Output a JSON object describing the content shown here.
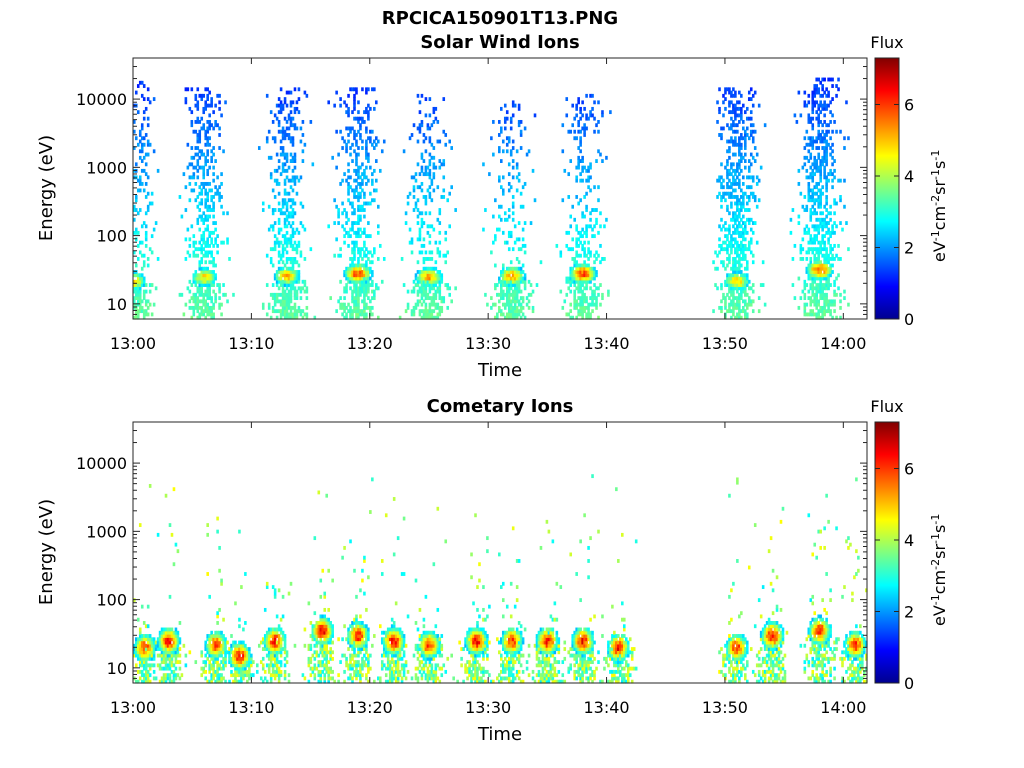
{
  "figure": {
    "filename": "RPCICA150901T13.PNG"
  },
  "chart_data": [
    {
      "type": "heatmap",
      "title": "Solar Wind Ions",
      "xlabel": "Time",
      "ylabel": "Energy (eV)",
      "x_ticks": [
        "13:00",
        "13:10",
        "13:20",
        "13:30",
        "13:40",
        "13:50",
        "14:00"
      ],
      "x_range": [
        "13:00",
        "14:02"
      ],
      "y_scale": "log",
      "y_ticks": [
        10,
        100,
        1000,
        10000
      ],
      "y_tick_labels": [
        "10",
        "100",
        "1000",
        "10000"
      ],
      "y_range": [
        6,
        40000
      ],
      "colorbar": {
        "label": "Flux",
        "unit_label": "eV-1cm-2sr-1s-1",
        "range": [
          0,
          7.3
        ],
        "ticks": [
          0,
          2,
          4,
          6
        ],
        "colormap": "jet"
      },
      "bursts": [
        {
          "time": "13:00",
          "peak_energy_eV": 22,
          "peak_flux": 5.5,
          "max_energy_eV": 20000,
          "density": 0.35
        },
        {
          "time": "13:06",
          "peak_energy_eV": 25,
          "peak_flux": 5.2,
          "max_energy_eV": 15000,
          "density": 0.55
        },
        {
          "time": "13:13",
          "peak_energy_eV": 26,
          "peak_flux": 5.5,
          "max_energy_eV": 15000,
          "density": 0.55
        },
        {
          "time": "13:19",
          "peak_energy_eV": 28,
          "peak_flux": 6.5,
          "max_energy_eV": 15000,
          "density": 0.55
        },
        {
          "time": "13:25",
          "peak_energy_eV": 25,
          "peak_flux": 5.8,
          "max_energy_eV": 12000,
          "density": 0.35
        },
        {
          "time": "13:32",
          "peak_energy_eV": 26,
          "peak_flux": 5.8,
          "max_energy_eV": 10000,
          "density": 0.25
        },
        {
          "time": "13:38",
          "peak_energy_eV": 28,
          "peak_flux": 6.5,
          "max_energy_eV": 12000,
          "density": 0.35
        },
        {
          "time": "13:51",
          "peak_energy_eV": 22,
          "peak_flux": 5.4,
          "max_energy_eV": 15000,
          "density": 0.75
        },
        {
          "time": "13:58",
          "peak_energy_eV": 32,
          "peak_flux": 6.4,
          "max_energy_eV": 20000,
          "density": 0.75
        }
      ],
      "data_gap": [
        "13:43",
        "13:49"
      ]
    },
    {
      "type": "heatmap",
      "title": "Cometary Ions",
      "xlabel": "Time",
      "ylabel": "Energy (eV)",
      "x_ticks": [
        "13:00",
        "13:10",
        "13:20",
        "13:30",
        "13:40",
        "13:50",
        "14:00"
      ],
      "x_range": [
        "13:00",
        "14:02"
      ],
      "y_scale": "log",
      "y_ticks": [
        10,
        100,
        1000,
        10000
      ],
      "y_tick_labels": [
        "10",
        "100",
        "1000",
        "10000"
      ],
      "y_range": [
        6,
        40000
      ],
      "colorbar": {
        "label": "Flux",
        "unit_label": "eV-1cm-2sr-1s-1",
        "range": [
          0,
          7.3
        ],
        "ticks": [
          0,
          2,
          4,
          6
        ],
        "colormap": "jet"
      },
      "bursts": [
        {
          "time": "13:01",
          "peak_energy_eV": 20,
          "peak_flux": 6.5
        },
        {
          "time": "13:03",
          "peak_energy_eV": 25,
          "peak_flux": 6.8
        },
        {
          "time": "13:07",
          "peak_energy_eV": 22,
          "peak_flux": 6.5
        },
        {
          "time": "13:09",
          "peak_energy_eV": 15,
          "peak_flux": 7.0
        },
        {
          "time": "13:12",
          "peak_energy_eV": 25,
          "peak_flux": 6.8
        },
        {
          "time": "13:16",
          "peak_energy_eV": 35,
          "peak_flux": 7.0
        },
        {
          "time": "13:19",
          "peak_energy_eV": 30,
          "peak_flux": 6.8
        },
        {
          "time": "13:22",
          "peak_energy_eV": 25,
          "peak_flux": 7.0
        },
        {
          "time": "13:25",
          "peak_energy_eV": 22,
          "peak_flux": 6.6
        },
        {
          "time": "13:29",
          "peak_energy_eV": 25,
          "peak_flux": 7.0
        },
        {
          "time": "13:32",
          "peak_energy_eV": 25,
          "peak_flux": 6.6
        },
        {
          "time": "13:35",
          "peak_energy_eV": 25,
          "peak_flux": 6.8
        },
        {
          "time": "13:38",
          "peak_energy_eV": 25,
          "peak_flux": 6.8
        },
        {
          "time": "13:41",
          "peak_energy_eV": 20,
          "peak_flux": 6.8
        },
        {
          "time": "13:51",
          "peak_energy_eV": 20,
          "peak_flux": 6.6
        },
        {
          "time": "13:54",
          "peak_energy_eV": 30,
          "peak_flux": 7.0
        },
        {
          "time": "13:58",
          "peak_energy_eV": 35,
          "peak_flux": 6.8
        },
        {
          "time": "14:01",
          "peak_energy_eV": 22,
          "peak_flux": 6.6
        }
      ],
      "data_gap": [
        "13:43",
        "13:49"
      ]
    }
  ]
}
